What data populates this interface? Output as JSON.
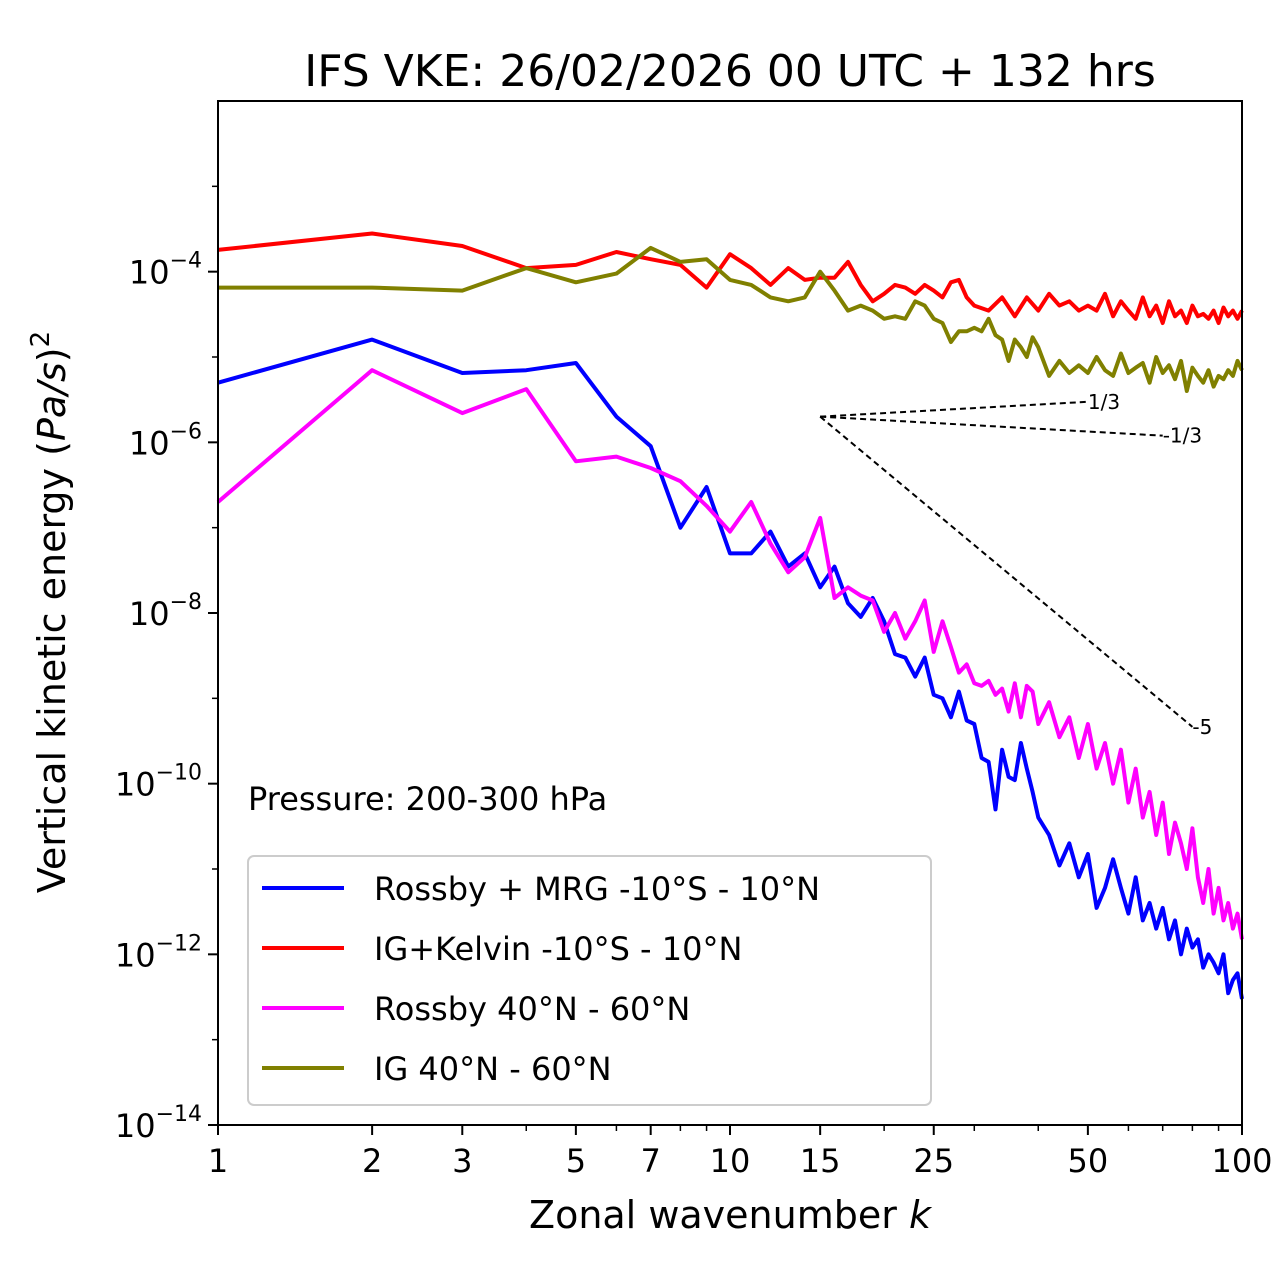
{
  "chart_data": {
    "type": "line",
    "title": "IFS VKE: 26/02/2026 00 UTC + 132 hrs",
    "xlabel_text": "Zonal wavenumber ",
    "xlabel_var": "k",
    "ylabel_text": "Vertical kinetic energy (",
    "ylabel_unit": "Pa/s",
    "ylabel_close": ")",
    "ylabel_exp": "2",
    "xscale": "log",
    "yscale": "log",
    "xlim": [
      1,
      100
    ],
    "ylim": [
      1e-14,
      0.01
    ],
    "x_ticks": [
      {
        "value": 1,
        "label": "1"
      },
      {
        "value": 2,
        "label": "2"
      },
      {
        "value": 3,
        "label": "3"
      },
      {
        "value": 5,
        "label": "5"
      },
      {
        "value": 7,
        "label": "7"
      },
      {
        "value": 10,
        "label": "10"
      },
      {
        "value": 15,
        "label": "15"
      },
      {
        "value": 25,
        "label": "25"
      },
      {
        "value": 50,
        "label": "50"
      },
      {
        "value": 100,
        "label": "100"
      }
    ],
    "y_ticks": [
      {
        "value": 0.0001,
        "base": "10",
        "exp": "−4"
      },
      {
        "value": 1e-06,
        "base": "10",
        "exp": "−6"
      },
      {
        "value": 1e-08,
        "base": "10",
        "exp": "−8"
      },
      {
        "value": 1e-10,
        "base": "10",
        "exp": "−10"
      },
      {
        "value": 1e-12,
        "base": "10",
        "exp": "−12"
      },
      {
        "value": 1e-14,
        "base": "10",
        "exp": "−14"
      }
    ],
    "annotation": "Pressure: 200-300 hPa",
    "legend_position": "lower-left",
    "series": [
      {
        "name": "Rossby + MRG -10°S - 10°N",
        "color": "#0000ff",
        "x": [
          1,
          2,
          3,
          4,
          5,
          6,
          7,
          8,
          9,
          10,
          11,
          12,
          13,
          14,
          15,
          16,
          17,
          18,
          19,
          20,
          21,
          22,
          23,
          24,
          25,
          26,
          27,
          28,
          29,
          30,
          31,
          32,
          33,
          34,
          35,
          36,
          37,
          38,
          39,
          40,
          42,
          44,
          46,
          48,
          50,
          52,
          54,
          56,
          58,
          60,
          62,
          64,
          66,
          68,
          70,
          72,
          74,
          76,
          78,
          80,
          82,
          84,
          86,
          88,
          90,
          92,
          94,
          96,
          98,
          100
        ],
        "values": [
          5e-06,
          1.6e-05,
          6.5e-06,
          7e-06,
          8.5e-06,
          2e-06,
          9e-07,
          1e-07,
          3e-07,
          5e-08,
          5e-08,
          9e-08,
          3.5e-08,
          5e-08,
          2e-08,
          3.5e-08,
          1.3e-08,
          9e-09,
          1.5e-08,
          8e-09,
          3.3e-09,
          3e-09,
          1.8e-09,
          3e-09,
          1.1e-09,
          1e-09,
          6e-10,
          1.2e-09,
          5.5e-10,
          5e-10,
          2e-10,
          1.8e-10,
          5e-11,
          2.5e-10,
          1.2e-10,
          1.1e-10,
          3e-10,
          1.5e-10,
          8e-11,
          4e-11,
          2.5e-11,
          1.1e-11,
          2e-11,
          8e-12,
          1.5e-11,
          3.5e-12,
          6e-12,
          1.3e-11,
          6e-12,
          3e-12,
          8e-12,
          2.5e-12,
          4e-12,
          2e-12,
          3.5e-12,
          1.5e-12,
          2.5e-12,
          1e-12,
          2e-12,
          1.2e-12,
          1.5e-12,
          7e-13,
          1e-12,
          8e-13,
          6e-13,
          1e-12,
          3.5e-13,
          5e-13,
          6e-13,
          3e-13
        ]
      },
      {
        "name": "IG+Kelvin -10°S - 10°N",
        "color": "#ff0000",
        "x": [
          1,
          2,
          3,
          4,
          5,
          6,
          7,
          8,
          9,
          10,
          11,
          12,
          13,
          14,
          15,
          16,
          17,
          18,
          19,
          20,
          21,
          22,
          23,
          24,
          25,
          26,
          27,
          28,
          29,
          30,
          32,
          34,
          36,
          38,
          40,
          42,
          44,
          46,
          48,
          50,
          52,
          54,
          56,
          58,
          60,
          62,
          64,
          66,
          68,
          70,
          72,
          74,
          76,
          78,
          80,
          82,
          84,
          86,
          88,
          90,
          92,
          94,
          96,
          98,
          100
        ],
        "values": [
          0.00018,
          0.00028,
          0.0002,
          0.00011,
          0.00012,
          0.00017,
          0.00014,
          0.00012,
          6.5e-05,
          0.00016,
          0.00011,
          7e-05,
          0.00011,
          8e-05,
          8.5e-05,
          8.5e-05,
          0.00013,
          7e-05,
          4.5e-05,
          5.5e-05,
          7e-05,
          6.5e-05,
          5.5e-05,
          7e-05,
          6e-05,
          5e-05,
          7.5e-05,
          8e-05,
          5e-05,
          4e-05,
          3.5e-05,
          5e-05,
          3e-05,
          5e-05,
          3.5e-05,
          5.5e-05,
          4e-05,
          4.5e-05,
          3.5e-05,
          4e-05,
          3.5e-05,
          5.5e-05,
          3e-05,
          4.5e-05,
          3.5e-05,
          2.8e-05,
          5e-05,
          3e-05,
          4e-05,
          2.5e-05,
          4.5e-05,
          3e-05,
          3.5e-05,
          2.5e-05,
          4e-05,
          3e-05,
          3.2e-05,
          2.8e-05,
          3.5e-05,
          2.5e-05,
          3.8e-05,
          3e-05,
          3.5e-05,
          2.8e-05,
          3.5e-05
        ]
      },
      {
        "name": "Rossby 40°N - 60°N",
        "color": "#ff00ff",
        "x": [
          1,
          2,
          3,
          4,
          5,
          6,
          7,
          8,
          9,
          10,
          11,
          12,
          13,
          14,
          15,
          16,
          17,
          18,
          19,
          20,
          21,
          22,
          23,
          24,
          25,
          26,
          27,
          28,
          29,
          30,
          31,
          32,
          33,
          34,
          35,
          36,
          37,
          38,
          39,
          40,
          42,
          44,
          46,
          48,
          50,
          52,
          54,
          56,
          58,
          60,
          62,
          64,
          66,
          68,
          70,
          72,
          74,
          76,
          78,
          80,
          82,
          84,
          86,
          88,
          90,
          92,
          94,
          96,
          98,
          100
        ],
        "values": [
          2e-07,
          7e-06,
          2.2e-06,
          4.2e-06,
          6e-07,
          6.8e-07,
          5e-07,
          3.5e-07,
          1.8e-07,
          9e-08,
          2e-07,
          6.5e-08,
          3e-08,
          4.5e-08,
          1.3e-07,
          1.5e-08,
          2e-08,
          1.6e-08,
          1.4e-08,
          6e-09,
          1e-08,
          5e-09,
          8e-09,
          1.4e-08,
          3.5e-09,
          8e-09,
          4e-09,
          2e-09,
          2.5e-09,
          1.5e-09,
          1.4e-09,
          1.6e-09,
          1.1e-09,
          1.3e-09,
          7e-10,
          1.5e-09,
          6e-10,
          1.4e-09,
          1.2e-09,
          5e-10,
          9e-10,
          3.5e-10,
          6e-10,
          2e-10,
          5e-10,
          1.5e-10,
          3e-10,
          1e-10,
          2.5e-10,
          6e-11,
          1.5e-10,
          4e-11,
          8e-11,
          2.5e-11,
          6e-11,
          1.5e-11,
          3.5e-11,
          2e-11,
          1e-11,
          3e-11,
          8e-12,
          4e-12,
          1e-11,
          3e-12,
          6e-12,
          2.5e-12,
          4e-12,
          2e-12,
          3e-12,
          1.5e-12
        ]
      },
      {
        "name": "IG 40°N - 60°N",
        "color": "#808000",
        "x": [
          1,
          2,
          3,
          4,
          5,
          6,
          7,
          8,
          9,
          10,
          11,
          12,
          13,
          14,
          15,
          16,
          17,
          18,
          19,
          20,
          21,
          22,
          23,
          24,
          25,
          26,
          27,
          28,
          29,
          30,
          31,
          32,
          33,
          34,
          35,
          36,
          37,
          38,
          39,
          40,
          42,
          44,
          46,
          48,
          50,
          52,
          54,
          56,
          58,
          60,
          62,
          64,
          66,
          68,
          70,
          72,
          74,
          76,
          78,
          80,
          82,
          84,
          86,
          88,
          90,
          92,
          94,
          96,
          98,
          100
        ],
        "values": [
          6.5e-05,
          6.5e-05,
          6e-05,
          0.00011,
          7.5e-05,
          9.5e-05,
          0.00019,
          0.00013,
          0.00014,
          8e-05,
          7e-05,
          5e-05,
          4.5e-05,
          5e-05,
          0.0001,
          6e-05,
          3.5e-05,
          4e-05,
          3.5e-05,
          2.8e-05,
          3e-05,
          2.8e-05,
          4.5e-05,
          4e-05,
          2.8e-05,
          2.5e-05,
          1.5e-05,
          2e-05,
          2e-05,
          2.2e-05,
          2e-05,
          2.8e-05,
          1.8e-05,
          1.6e-05,
          9e-06,
          1.6e-05,
          1.3e-05,
          1e-05,
          1.7e-05,
          1.3e-05,
          6e-06,
          9e-06,
          6.5e-06,
          8e-06,
          6.5e-06,
          1e-05,
          7e-06,
          6e-06,
          1.1e-05,
          6.5e-06,
          7.5e-06,
          8.5e-06,
          5e-06,
          1e-05,
          6.5e-06,
          8e-06,
          5.5e-06,
          9e-06,
          4e-06,
          7.5e-06,
          6e-06,
          5e-06,
          7e-06,
          4.5e-06,
          6e-06,
          5.5e-06,
          7e-06,
          6e-06,
          9e-06,
          7e-06
        ]
      }
    ],
    "reference_lines": [
      {
        "label": "1/3",
        "slope": 0.3333,
        "x0": 15,
        "y0": 2e-06,
        "x1": 50
      },
      {
        "label": "-1/3",
        "slope": -0.3333,
        "x0": 15,
        "y0": 2e-06,
        "x1": 70
      },
      {
        "label": "-5",
        "slope": -5,
        "x0": 15,
        "y0": 2e-06,
        "x1": 80
      }
    ]
  }
}
